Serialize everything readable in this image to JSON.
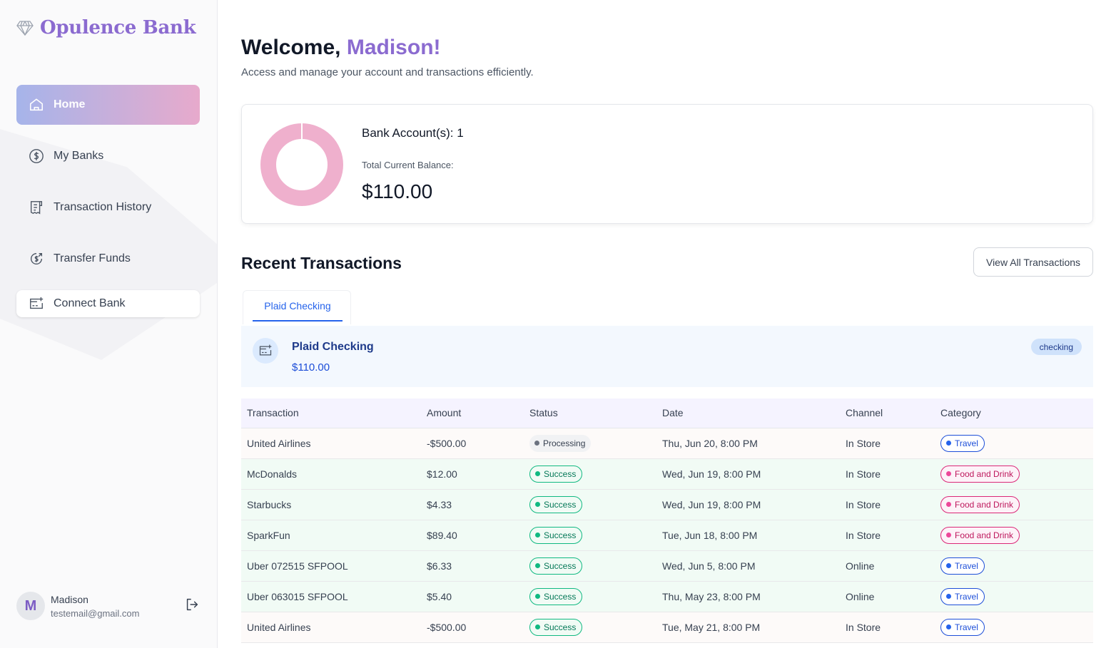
{
  "brand": {
    "name": "Opulence Bank",
    "accent": "#8b6bd0"
  },
  "sidebar": {
    "items": [
      {
        "label": "Home",
        "icon": "home-icon",
        "active": true
      },
      {
        "label": "My Banks",
        "icon": "dollar-circle-icon"
      },
      {
        "label": "Transaction History",
        "icon": "receipt-icon"
      },
      {
        "label": "Transfer Funds",
        "icon": "money-send-icon"
      },
      {
        "label": "Connect Bank",
        "icon": "card-add-icon"
      }
    ],
    "user": {
      "initial": "M",
      "name": "Madison",
      "email": "testemail@gmail.com"
    }
  },
  "header": {
    "greeting": "Welcome,",
    "name": "Madison!",
    "subtitle": "Access and manage your account and transactions efficiently."
  },
  "balance": {
    "accounts_label": "Bank Account(s): 1",
    "total_label": "Total Current Balance:",
    "total_value": "$110.00",
    "donut_color": "#efb0cd"
  },
  "recent": {
    "title": "Recent Transactions",
    "view_all": "View All Transactions",
    "tab": "Plaid Checking",
    "bank": {
      "name": "Plaid Checking",
      "amount": "$110.00",
      "type": "checking"
    },
    "columns": [
      "Transaction",
      "Amount",
      "Status",
      "Date",
      "Channel",
      "Category"
    ],
    "rows": [
      {
        "name": "United Airlines",
        "amount": "-$500.00",
        "status": "Processing",
        "date": "Thu, Jun 20, 8:00 PM",
        "channel": "In Store",
        "category": "Travel"
      },
      {
        "name": "McDonalds",
        "amount": "$12.00",
        "status": "Success",
        "date": "Wed, Jun 19, 8:00 PM",
        "channel": "In Store",
        "category": "Food and Drink"
      },
      {
        "name": "Starbucks",
        "amount": "$4.33",
        "status": "Success",
        "date": "Wed, Jun 19, 8:00 PM",
        "channel": "In Store",
        "category": "Food and Drink"
      },
      {
        "name": "SparkFun",
        "amount": "$89.40",
        "status": "Success",
        "date": "Tue, Jun 18, 8:00 PM",
        "channel": "In Store",
        "category": "Food and Drink"
      },
      {
        "name": "Uber 072515 SFPOOL",
        "amount": "$6.33",
        "status": "Success",
        "date": "Wed, Jun 5, 8:00 PM",
        "channel": "Online",
        "category": "Travel"
      },
      {
        "name": "Uber 063015 SFPOOL",
        "amount": "$5.40",
        "status": "Success",
        "date": "Thu, May 23, 8:00 PM",
        "channel": "Online",
        "category": "Travel"
      },
      {
        "name": "United Airlines",
        "amount": "-$500.00",
        "status": "Success",
        "date": "Tue, May 21, 8:00 PM",
        "channel": "In Store",
        "category": "Travel"
      }
    ]
  }
}
